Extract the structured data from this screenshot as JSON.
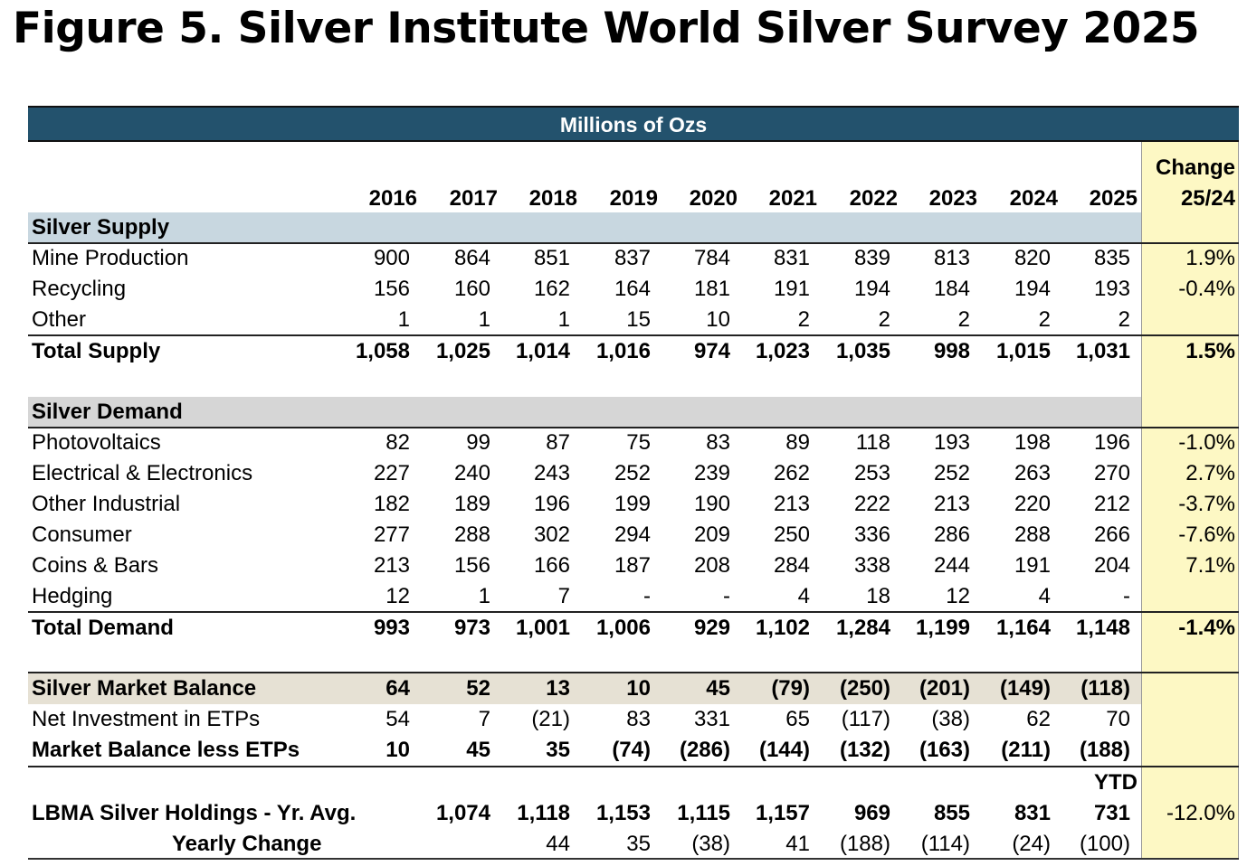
{
  "figure_title": "Figure 5. Silver Institute World Silver Survey 2025",
  "chart_data": {
    "type": "table",
    "banner": "Millions of Ozs",
    "change_header": [
      "Change",
      "25/24"
    ],
    "years": [
      "2016",
      "2017",
      "2018",
      "2019",
      "2020",
      "2021",
      "2022",
      "2023",
      "2024",
      "2025"
    ],
    "supply": {
      "header": "Silver Supply",
      "rows": [
        {
          "label": "Mine Production",
          "values": [
            "900",
            "864",
            "851",
            "837",
            "784",
            "831",
            "839",
            "813",
            "820",
            "835"
          ],
          "change": "1.9%"
        },
        {
          "label": "Recycling",
          "values": [
            "156",
            "160",
            "162",
            "164",
            "181",
            "191",
            "194",
            "184",
            "194",
            "193"
          ],
          "change": "-0.4%"
        },
        {
          "label": "Other",
          "values": [
            "1",
            "1",
            "1",
            "15",
            "10",
            "2",
            "2",
            "2",
            "2",
            "2"
          ],
          "change": ""
        }
      ],
      "total": {
        "label": "Total Supply",
        "values": [
          "1,058",
          "1,025",
          "1,014",
          "1,016",
          "974",
          "1,023",
          "1,035",
          "998",
          "1,015",
          "1,031"
        ],
        "change": "1.5%"
      }
    },
    "demand": {
      "header": "Silver Demand",
      "rows": [
        {
          "label": "Photovoltaics",
          "values": [
            "82",
            "99",
            "87",
            "75",
            "83",
            "89",
            "118",
            "193",
            "198",
            "196"
          ],
          "change": "-1.0%"
        },
        {
          "label": "Electrical & Electronics",
          "values": [
            "227",
            "240",
            "243",
            "252",
            "239",
            "262",
            "253",
            "252",
            "263",
            "270"
          ],
          "change": "2.7%"
        },
        {
          "label": "Other Industrial",
          "values": [
            "182",
            "189",
            "196",
            "199",
            "190",
            "213",
            "222",
            "213",
            "220",
            "212"
          ],
          "change": "-3.7%"
        },
        {
          "label": "Consumer",
          "values": [
            "277",
            "288",
            "302",
            "294",
            "209",
            "250",
            "336",
            "286",
            "288",
            "266"
          ],
          "change": "-7.6%"
        },
        {
          "label": "Coins & Bars",
          "values": [
            "213",
            "156",
            "166",
            "187",
            "208",
            "284",
            "338",
            "244",
            "191",
            "204"
          ],
          "change": "7.1%"
        },
        {
          "label": "Hedging",
          "values": [
            "12",
            "1",
            "7",
            "-",
            "-",
            "4",
            "18",
            "12",
            "4",
            "-"
          ],
          "change": ""
        }
      ],
      "total": {
        "label": "Total Demand",
        "values": [
          "993",
          "973",
          "1,001",
          "1,006",
          "929",
          "1,102",
          "1,284",
          "1,199",
          "1,164",
          "1,148"
        ],
        "change": "-1.4%"
      }
    },
    "balance": {
      "label": "Silver Market Balance",
      "values": [
        "64",
        "52",
        "13",
        "10",
        "45",
        "(79)",
        "(250)",
        "(201)",
        "(149)",
        "(118)"
      ]
    },
    "etps": {
      "label": "Net Investment in ETPs",
      "values": [
        "54",
        "7",
        "(21)",
        "83",
        "331",
        "65",
        "(117)",
        "(38)",
        "62",
        "70"
      ]
    },
    "balance_less_etps": {
      "label": "Market Balance less ETPs",
      "values": [
        "10",
        "45",
        "35",
        "(74)",
        "(286)",
        "(144)",
        "(132)",
        "(163)",
        "(211)",
        "(188)"
      ]
    },
    "ytd_label": "YTD",
    "lbma": {
      "label": "LBMA Silver Holdings - Yr. Avg.",
      "values": [
        "",
        "1,074",
        "1,118",
        "1,153",
        "1,115",
        "1,157",
        "969",
        "855",
        "831",
        "731"
      ],
      "change": "-12.0%"
    },
    "yearly_change": {
      "label": "Yearly Change",
      "values": [
        "",
        "",
        "44",
        "35",
        "(38)",
        "41",
        "(188)",
        "(114)",
        "(24)",
        "(100)"
      ]
    }
  }
}
